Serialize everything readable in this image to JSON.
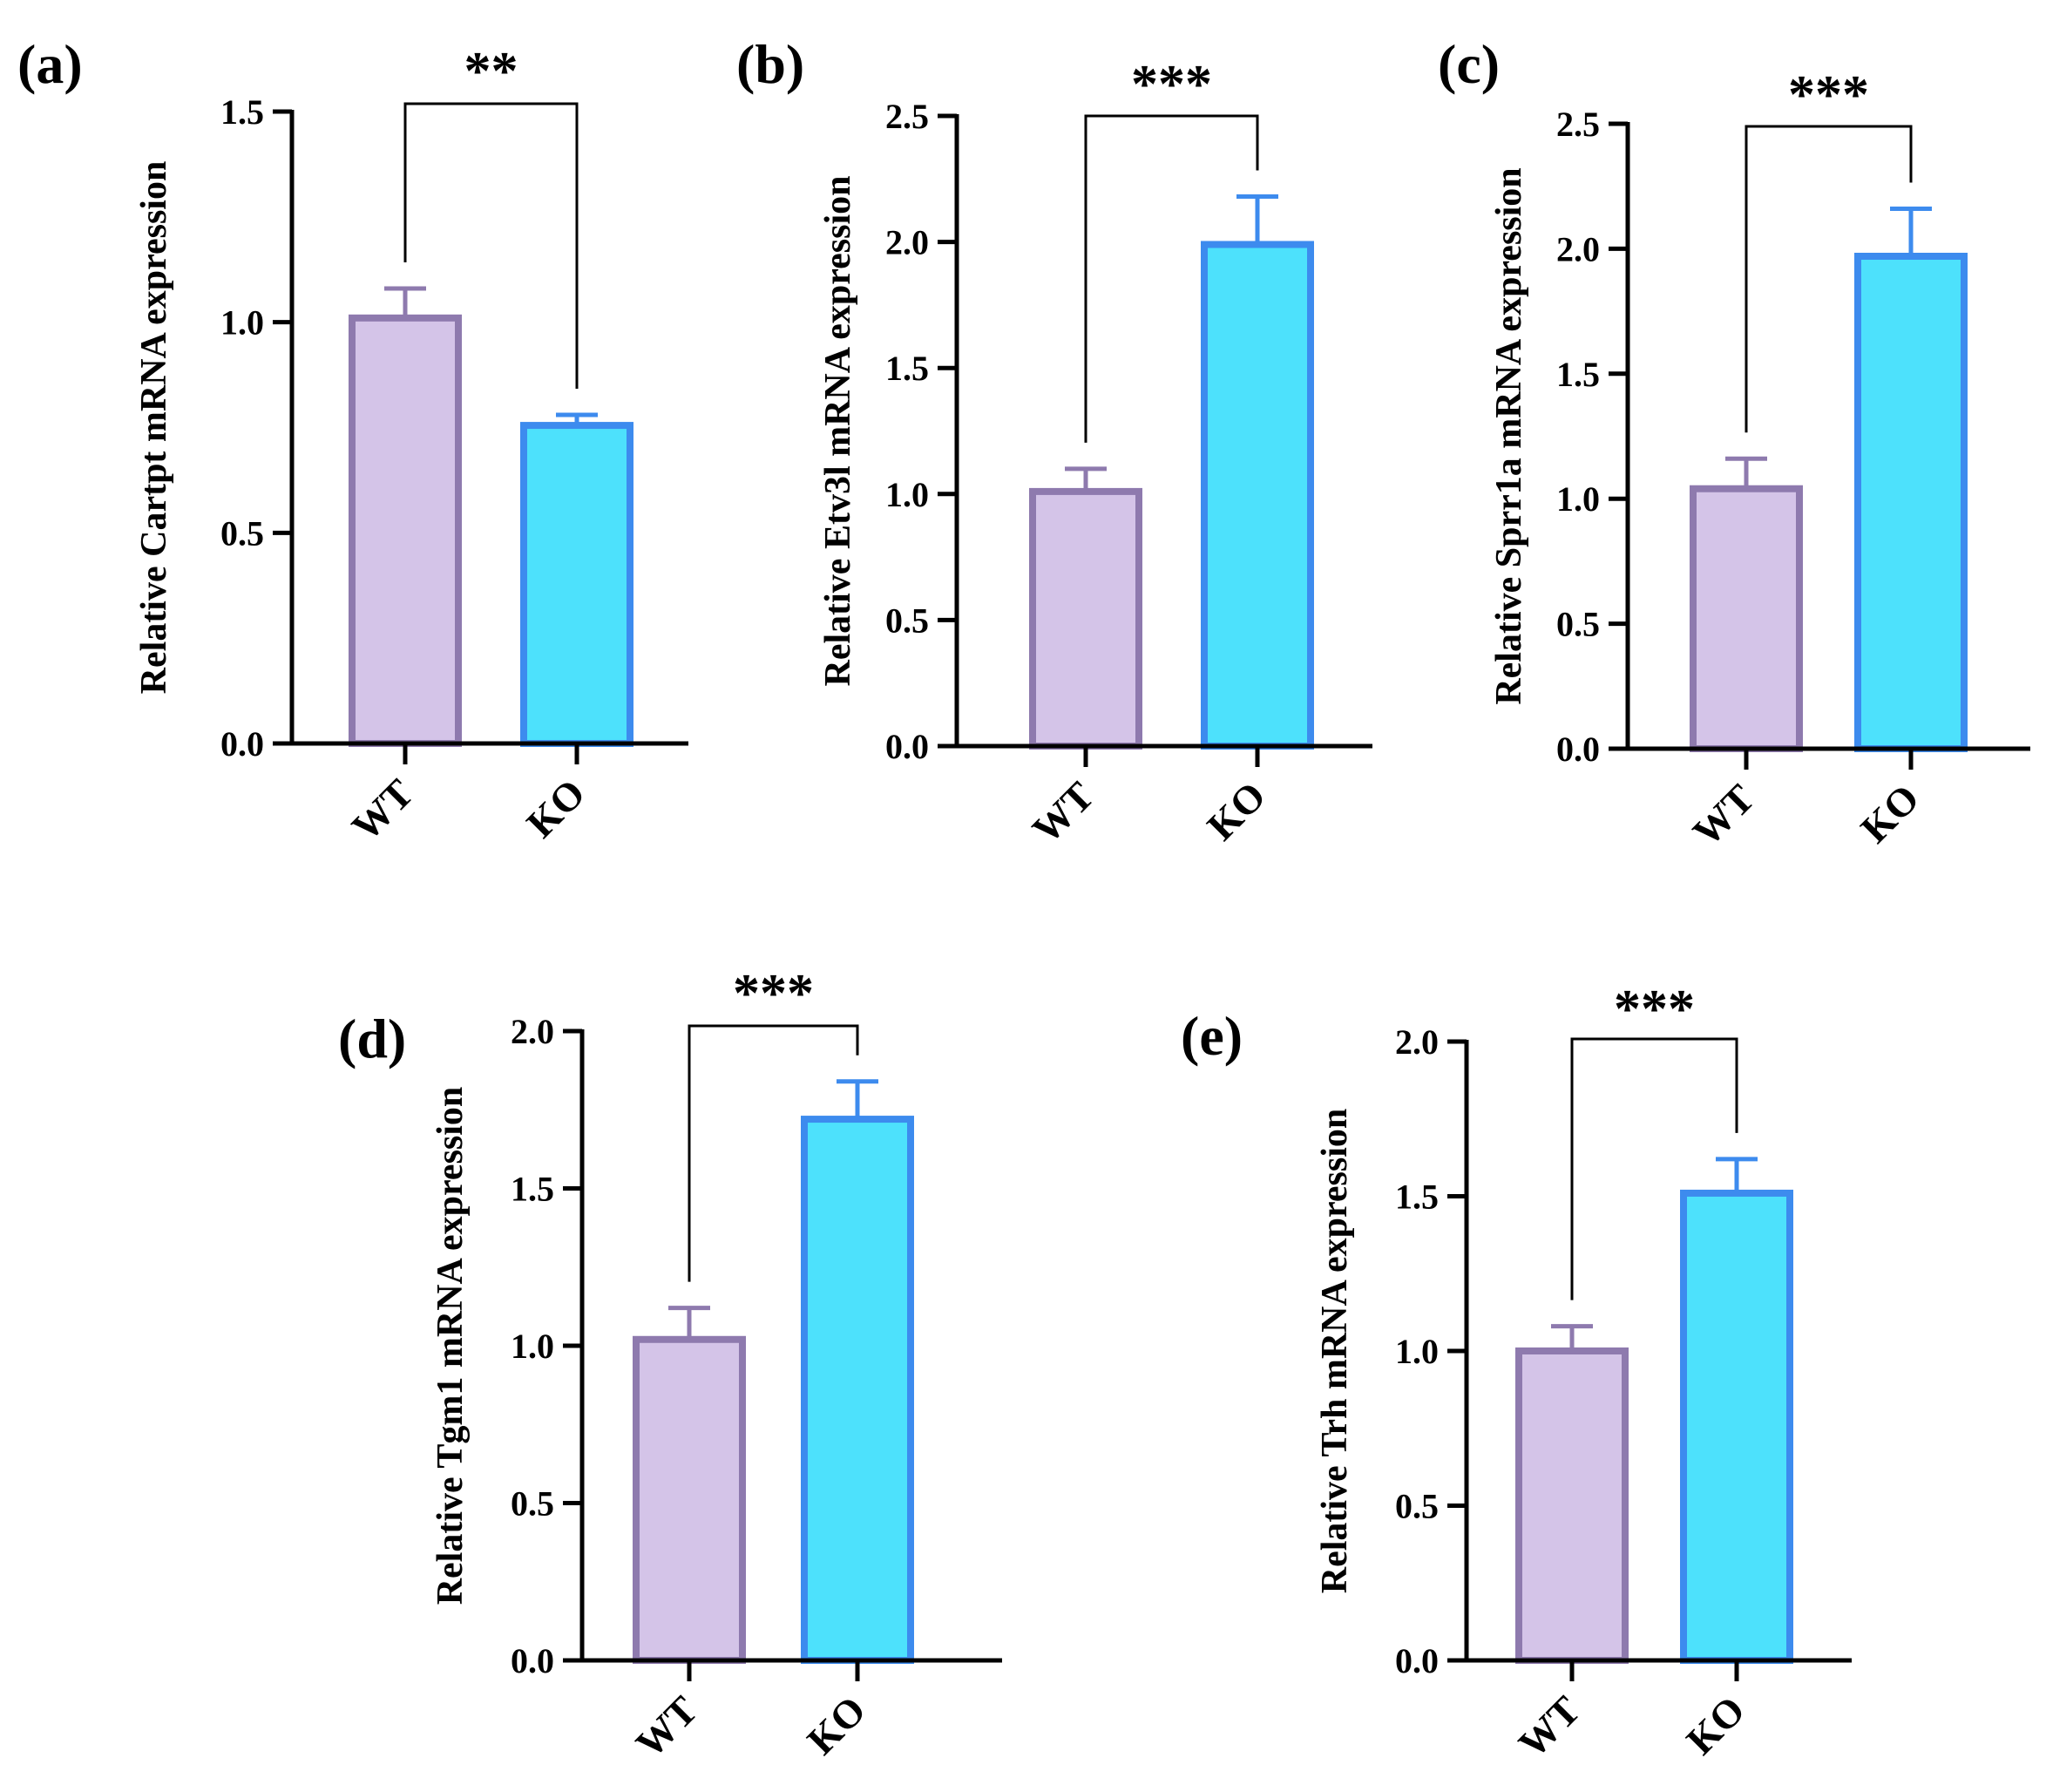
{
  "colors": {
    "wt_fill": "#D4C4E8",
    "wt_edge": "#8E7AAE",
    "ko_fill": "#4DE1FC",
    "ko_edge": "#3D8BEE",
    "axis": "#000000"
  },
  "chart_data": [
    {
      "type": "bar",
      "panel_label": "(a)",
      "categories": [
        "WT",
        "KO"
      ],
      "values": [
        1.01,
        0.755
      ],
      "errors": [
        0.07,
        0.025
      ],
      "ylabel": "Relative Cartpt mRNA expression",
      "ylim": [
        0,
        1.5
      ],
      "yticks": [
        0.0,
        0.5,
        1.0,
        1.5
      ],
      "ytick_labels": [
        "0.0",
        "0.5",
        "1.0",
        "1.5"
      ],
      "significance": "**"
    },
    {
      "type": "bar",
      "panel_label": "(b)",
      "categories": [
        "WT",
        "KO"
      ],
      "values": [
        1.01,
        1.99
      ],
      "errors": [
        0.09,
        0.19
      ],
      "ylabel": "Relative Etv3l  mRNA expression",
      "ylim": [
        0,
        2.5
      ],
      "yticks": [
        0.0,
        0.5,
        1.0,
        1.5,
        2.0,
        2.5
      ],
      "ytick_labels": [
        "0.0",
        "0.5",
        "1.0",
        "1.5",
        "2.0",
        "2.5"
      ],
      "significance": "***"
    },
    {
      "type": "bar",
      "panel_label": "(c)",
      "categories": [
        "WT",
        "KO"
      ],
      "values": [
        1.04,
        1.97
      ],
      "errors": [
        0.12,
        0.19
      ],
      "ylabel": "Relative Sprr1a  mRNA expression",
      "ylim": [
        0,
        2.5
      ],
      "yticks": [
        0.0,
        0.5,
        1.0,
        1.5,
        2.0,
        2.5
      ],
      "ytick_labels": [
        "0.0",
        "0.5",
        "1.0",
        "1.5",
        "2.0",
        "2.5"
      ],
      "significance": "***"
    },
    {
      "type": "bar",
      "panel_label": "(d)",
      "categories": [
        "WT",
        "KO"
      ],
      "values": [
        1.02,
        1.72
      ],
      "errors": [
        0.1,
        0.12
      ],
      "ylabel": "Relative Tgm1 mRNA expression",
      "ylim": [
        0,
        2.0
      ],
      "yticks": [
        0.0,
        0.5,
        1.0,
        1.5,
        2.0
      ],
      "ytick_labels": [
        "0.0",
        "0.5",
        "1.0",
        "1.5",
        "2.0"
      ],
      "significance": "***"
    },
    {
      "type": "bar",
      "panel_label": "(e)",
      "categories": [
        "WT",
        "KO"
      ],
      "values": [
        1.0,
        1.51
      ],
      "errors": [
        0.08,
        0.11
      ],
      "ylabel": "Relative Trh mRNA expression",
      "ylim": [
        0,
        2.0
      ],
      "yticks": [
        0.0,
        0.5,
        1.0,
        1.5,
        2.0
      ],
      "ytick_labels": [
        "0.0",
        "0.5",
        "1.0",
        "1.5",
        "2.0"
      ],
      "significance": "***"
    }
  ]
}
